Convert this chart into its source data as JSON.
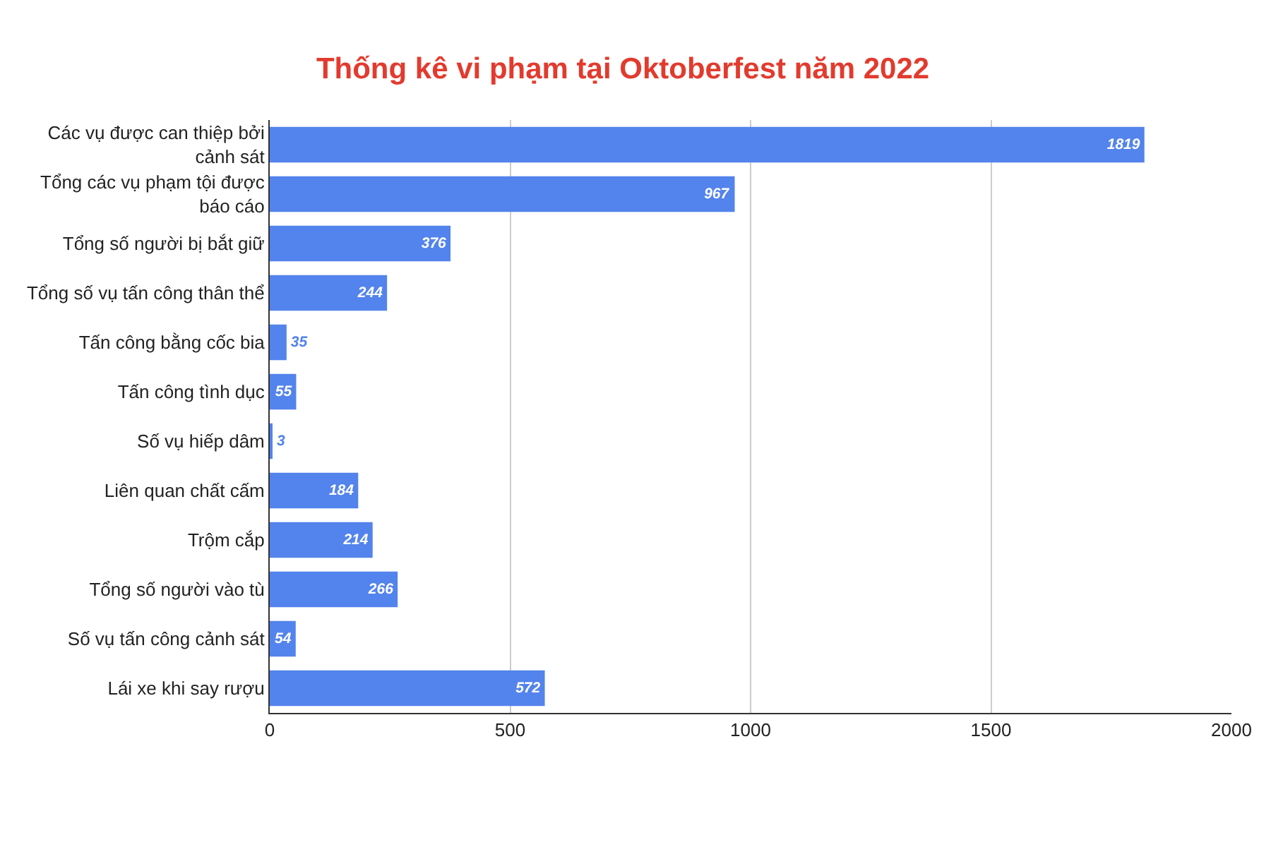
{
  "chart_data": {
    "type": "bar",
    "orientation": "horizontal",
    "title": "Thống kê vi phạm tại Oktoberfest năm 2022",
    "categories": [
      "Các vụ được can thiệp bởi cảnh sát",
      "Tổng các vụ phạm tội được báo cáo",
      "Tổng số người bị bắt giữ",
      "Tổng số vụ tấn công thân thể",
      "Tấn công bằng cốc bia",
      "Tấn công tình dục",
      "Số vụ hiếp dâm",
      "Liên quan chất cấm",
      "Trộm cắp",
      "Tổng số người vào tù",
      "Số vụ tấn công cảnh sát",
      "Lái xe khi say rượu"
    ],
    "values": [
      1819,
      967,
      376,
      244,
      35,
      55,
      3,
      184,
      214,
      266,
      54,
      572
    ],
    "color": "#5383ec",
    "data_labels": true,
    "xlim": [
      0,
      2000
    ],
    "xticks": [
      0,
      500,
      1000,
      1500,
      2000
    ],
    "grid": "x"
  }
}
